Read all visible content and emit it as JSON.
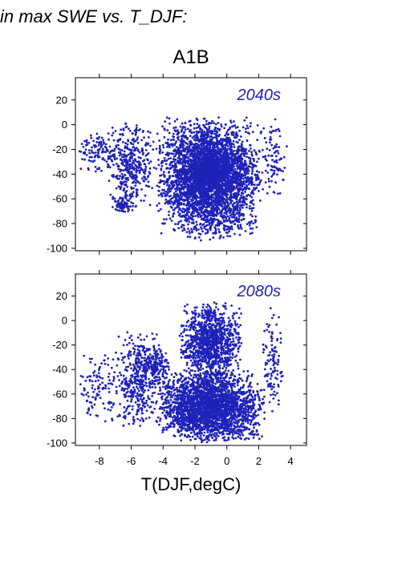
{
  "heading": "in max SWE vs. T_DJF:",
  "chart_data": {
    "type": "scatter",
    "title": "A1B",
    "xlabel": "T(DJF,degC)",
    "ylabel": "",
    "xlim": [
      -9.5,
      5
    ],
    "ylim": [
      -102,
      38
    ],
    "xticks": [
      -8,
      -6,
      -4,
      -2,
      0,
      2,
      4
    ],
    "yticks": [
      20,
      0,
      -20,
      -40,
      -60,
      -80,
      -100
    ],
    "color": "#1f22b8",
    "panels": [
      {
        "label": "2040s",
        "clusters": [
          {
            "x": [
              -9.5,
              -6.5
            ],
            "y": [
              -40,
              -5
            ],
            "n": 120
          },
          {
            "x": [
              -7.5,
              -4.5
            ],
            "y": [
              -70,
              5
            ],
            "n": 380
          },
          {
            "x": [
              -7.2,
              -6.0
            ],
            "y": [
              -72,
              -58
            ],
            "n": 60
          },
          {
            "x": [
              -4.5,
              2.3
            ],
            "y": [
              -95,
              8
            ],
            "n": 3200
          },
          {
            "x": [
              -3.5,
              1.5
            ],
            "y": [
              -60,
              -10
            ],
            "n": 900
          },
          {
            "x": [
              2.2,
              3.8
            ],
            "y": [
              -60,
              5
            ],
            "n": 90
          }
        ]
      },
      {
        "label": "2080s",
        "clusters": [
          {
            "x": [
              -9.5,
              -6.5
            ],
            "y": [
              -85,
              -25
            ],
            "n": 120
          },
          {
            "x": [
              -7.0,
              -4.0
            ],
            "y": [
              -90,
              -5
            ],
            "n": 420
          },
          {
            "x": [
              -5.5,
              -3.5
            ],
            "y": [
              -50,
              -20
            ],
            "n": 150
          },
          {
            "x": [
              -4.5,
              2.4
            ],
            "y": [
              -100,
              -40
            ],
            "n": 2600
          },
          {
            "x": [
              -3.0,
              1.0
            ],
            "y": [
              -50,
              15
            ],
            "n": 1100
          },
          {
            "x": [
              2.2,
              3.6
            ],
            "y": [
              -75,
              12
            ],
            "n": 110
          }
        ]
      }
    ]
  }
}
